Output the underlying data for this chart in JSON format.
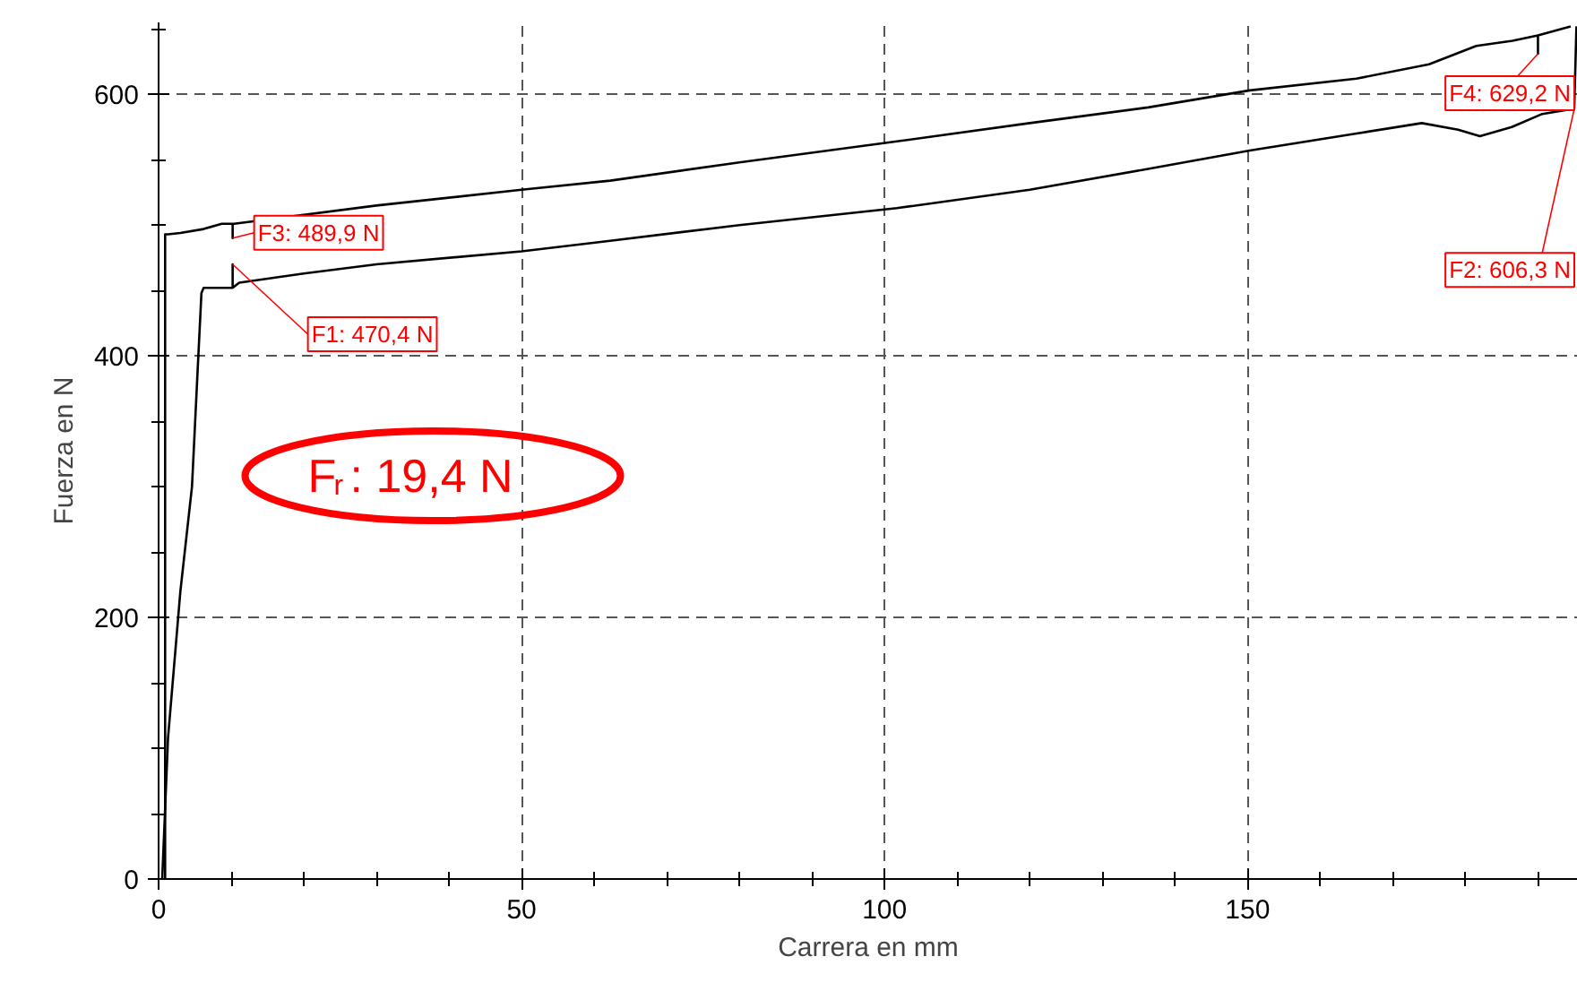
{
  "chart_data": {
    "type": "line",
    "xlabel": "Carrera en mm",
    "ylabel": "Fuerza en N",
    "xlim": [
      0,
      195.5
    ],
    "ylim": [
      0,
      655
    ],
    "xticks": [
      0,
      {
        "value": 10,
        "label": null
      },
      {
        "value": 20,
        "label": null
      },
      {
        "value": 30,
        "label": null
      },
      {
        "value": 40,
        "label": null
      },
      50,
      {
        "value": 60,
        "label": null
      },
      {
        "value": 70,
        "label": null
      },
      {
        "value": 80,
        "label": null
      },
      {
        "value": 90,
        "label": null
      },
      100,
      {
        "value": 110,
        "label": null
      },
      {
        "value": 120,
        "label": null
      },
      {
        "value": 130,
        "label": null
      },
      {
        "value": 140,
        "label": null
      },
      150,
      {
        "value": 160,
        "label": null
      },
      {
        "value": 170,
        "label": null
      },
      {
        "value": 180,
        "label": null
      },
      {
        "value": 190,
        "label": null
      }
    ],
    "yticks": [
      0,
      {
        "value": 50,
        "label": null
      },
      200,
      {
        "value": 100,
        "label": null
      },
      {
        "value": 150,
        "label": null
      },
      {
        "value": 250,
        "label": null
      },
      {
        "value": 300,
        "label": null
      },
      {
        "value": 350,
        "label": null
      },
      400,
      {
        "value": 450,
        "label": null
      },
      {
        "value": 500,
        "label": null
      },
      {
        "value": 550,
        "label": null
      },
      600,
      {
        "value": 650,
        "label": null
      }
    ],
    "grid": true,
    "line_style": "solid",
    "marker": "none",
    "series": [
      {
        "color": "#000000",
        "x": [
          0.5,
          1.3,
          3.0,
          4.6,
          5.3,
          5.9,
          6.2,
          8.0,
          9.5,
          10.2,
          10.2,
          10.2,
          11.1,
          20,
          30,
          50,
          62.2,
          80,
          101.7,
          120,
          136.3,
          150.3,
          165,
          174,
          179,
          182,
          186.4,
          190.6,
          195,
          195.3
        ],
        "values": [
          0,
          108,
          220,
          300,
          380,
          448,
          452,
          452,
          452,
          452,
          470,
          452,
          456,
          463,
          470,
          480,
          488,
          500,
          513,
          527,
          543,
          557,
          570,
          578,
          573,
          568,
          575,
          585,
          589,
          652
        ]
      },
      {
        "color": "#000000",
        "x": [
          194.5,
          190,
          190,
          190,
          186.5,
          181.5,
          175,
          165,
          150.3,
          136.3,
          120,
          101.7,
          80,
          62.2,
          50,
          30,
          10.4,
          10.2,
          10.2,
          10.2,
          8.7,
          6.2,
          3.0,
          1.3,
          0.9,
          0.9
        ],
        "values": [
          652,
          645,
          631,
          645,
          641,
          637,
          623,
          612,
          603,
          590,
          578,
          564,
          548,
          534,
          527,
          515,
          501,
          501,
          490,
          501,
          501,
          497,
          494,
          493,
          493,
          0
        ]
      }
    ],
    "annotations": [
      {
        "text": "F1: 470,4 N",
        "x": 10.2,
        "y": 470
      },
      {
        "text": "F2: 606,3 N",
        "x": 195,
        "y": 589
      },
      {
        "text": "F3: 489,9 N",
        "x": 10.2,
        "y": 490
      },
      {
        "text": "F4: 629,2 N",
        "x": 190,
        "y": 631
      },
      "F$_{r}$: 19,4 N"
    ]
  }
}
